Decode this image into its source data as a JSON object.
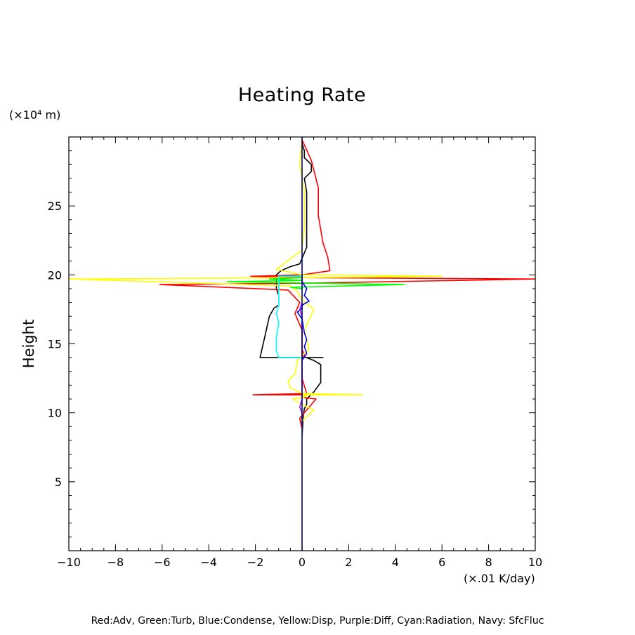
{
  "chart_data": {
    "type": "line",
    "title": "Heating Rate",
    "ylabel": "Height",
    "y_unit": "(×10⁴ m)",
    "x_unit": "(×.01 K/day)",
    "xlim": [
      -10,
      10
    ],
    "ylim": [
      0,
      30
    ],
    "x_ticks": [
      -10,
      -8,
      -6,
      -4,
      -2,
      0,
      2,
      4,
      6,
      8,
      10
    ],
    "y_ticks": [
      5,
      10,
      15,
      20,
      25
    ],
    "grid": false,
    "legend_text": "Red:Adv, Green:Turb, Blue:Condense, Yellow:Disp, Purple:Diff, Cyan:Radiation, Navy: SfcFluc",
    "series": [
      {
        "name": "Black",
        "color": "#000000",
        "x": [
          0,
          0.05,
          0.1,
          0.2,
          0.2,
          0.5,
          0.8,
          0.8,
          0.5,
          0.2,
          0.9,
          0.3,
          -0.5,
          -1.2,
          -1.8,
          -1.6,
          -1.4,
          -1.2,
          -1.0,
          -1.0,
          -1.1,
          -1.1,
          -0.9,
          -0.5,
          -0.1,
          0.2,
          0.2,
          0.2,
          0.1,
          0.4,
          0.4,
          0.1,
          0.1,
          0.0,
          0.0
        ],
        "y": [
          8.2,
          9.8,
          10.3,
          10.6,
          11.0,
          11.5,
          12.2,
          13.5,
          13.8,
          14.0,
          14.0,
          14.0,
          14.0,
          14.0,
          14.0,
          15.5,
          17.0,
          17.6,
          17.8,
          18.5,
          19.0,
          20.0,
          20.3,
          20.6,
          20.8,
          22.0,
          24.0,
          26.0,
          27.0,
          27.5,
          28.0,
          28.5,
          29.0,
          29.5,
          29.8
        ]
      },
      {
        "name": "Red",
        "color": "#ff0000",
        "x": [
          0,
          -0.1,
          0.2,
          0.6,
          0.1,
          0.1,
          -2.1,
          0.2,
          0.0,
          0.0,
          0.1,
          0.0,
          0.0,
          -0.3,
          -0.1,
          -0.6,
          -6.1,
          0.3,
          10.0,
          0.3,
          -2.2,
          0.0,
          1.2,
          1.1,
          0.9,
          0.7,
          0.7,
          0.4,
          0.0
        ],
        "y": [
          8.8,
          9.6,
          10.2,
          11.0,
          11.1,
          11.3,
          11.3,
          11.4,
          12.5,
          13.8,
          14.2,
          14.6,
          16.0,
          17.2,
          18.0,
          18.9,
          19.3,
          19.4,
          19.7,
          19.8,
          19.9,
          20.0,
          20.3,
          21.3,
          22.3,
          24.3,
          26.3,
          28.3,
          29.8
        ]
      },
      {
        "name": "Yellow",
        "color": "#ffff00",
        "x": [
          0,
          0.0,
          0.5,
          -0.2,
          -0.4,
          0.2,
          0.0,
          2.6,
          0.0,
          -0.5,
          -0.6,
          -0.3,
          -0.2,
          0.1,
          0.3,
          0.1,
          0.5,
          0.0,
          -0.2,
          -0.5,
          -10.0,
          0.0,
          6.0,
          0.0,
          -1.1,
          0.0,
          0.1,
          0.1,
          -0.1,
          0.0
        ],
        "y": [
          7.8,
          9.4,
          10.2,
          10.8,
          11.0,
          11.2,
          11.3,
          11.3,
          11.4,
          11.8,
          12.3,
          12.8,
          13.8,
          14.3,
          14.6,
          16.0,
          17.5,
          18.2,
          18.8,
          19.2,
          19.7,
          19.8,
          19.9,
          20.0,
          20.4,
          21.8,
          23.5,
          26.0,
          28.0,
          29.8
        ]
      },
      {
        "name": "Green",
        "color": "#00ff00",
        "x": [
          0,
          0.0,
          -0.5,
          4.4,
          0.5,
          -3.2,
          0.0,
          -1.4,
          0.0,
          0.0
        ],
        "y": [
          18.9,
          19.0,
          19.1,
          19.3,
          19.4,
          19.5,
          19.6,
          19.7,
          19.8,
          20.0
        ]
      },
      {
        "name": "Blue",
        "color": "#0000ff",
        "x": [
          0,
          0.2,
          0.1,
          0.2,
          0.1,
          0.0,
          -0.2,
          0.0,
          0.0,
          0.3,
          0.1,
          0.2,
          0.0,
          0.0
        ],
        "y": [
          13.8,
          14.3,
          14.8,
          15.3,
          15.8,
          16.8,
          17.3,
          17.6,
          17.8,
          18.1,
          18.5,
          19.0,
          19.5,
          20.0
        ]
      },
      {
        "name": "Purple",
        "color": "#a020f0",
        "x": [
          0,
          0.0,
          -0.1,
          0.0,
          0.0,
          0.0,
          -0.1,
          0.0
        ],
        "y": [
          9.0,
          10.0,
          10.4,
          11.0,
          13.0,
          17.0,
          17.5,
          18.0
        ]
      },
      {
        "name": "Cyan",
        "color": "#00ffff",
        "x": [
          0,
          -1.0,
          -1.1,
          -1.1,
          -1.0,
          -1.1,
          -1.0,
          -1.0,
          -1.0,
          -1.0,
          0.0
        ],
        "y": [
          14.0,
          14.0,
          14.5,
          15.5,
          16.5,
          17.2,
          17.8,
          18.5,
          19.2,
          19.9,
          19.9
        ]
      },
      {
        "name": "Navy",
        "color": "#000080",
        "x": [
          0,
          0
        ],
        "y": [
          0,
          30
        ]
      }
    ]
  }
}
